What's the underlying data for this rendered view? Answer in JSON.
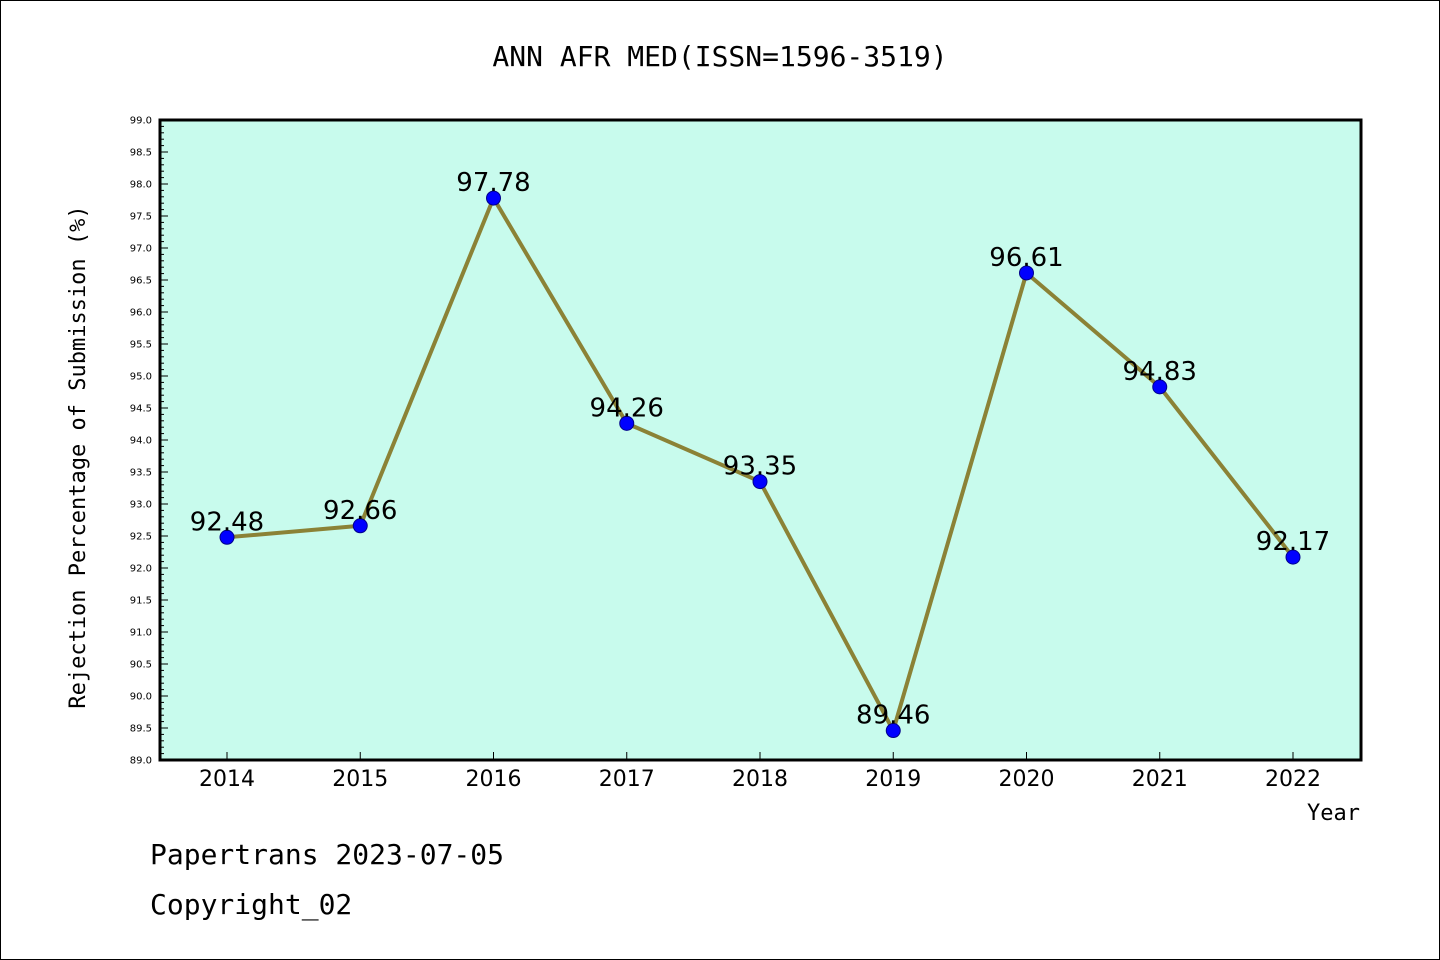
{
  "chart_data": {
    "type": "line",
    "title": "ANN AFR MED(ISSN=1596-3519)",
    "xlabel": "Year",
    "ylabel": "Rejection Percentage of Submission (%)",
    "ylim": [
      89.0,
      99.0
    ],
    "ytick_step": 0.5,
    "grid": false,
    "legend": "none",
    "categories": [
      "2014",
      "2015",
      "2016",
      "2017",
      "2018",
      "2019",
      "2020",
      "2021",
      "2022"
    ],
    "series": [
      {
        "values": [
          92.48,
          92.66,
          97.78,
          94.26,
          93.35,
          89.46,
          96.61,
          94.83,
          92.17
        ],
        "labels": [
          "92.48",
          "92.66",
          "97.78",
          "94.26",
          "93.35",
          "89.46",
          "96.61",
          "94.83",
          "92.17"
        ]
      }
    ],
    "colors": {
      "plot_background": "#c8fbed",
      "line": "#8b8236",
      "marker": "#0000ff"
    }
  },
  "footer": {
    "line1": "Papertrans 2023-07-05",
    "line2": "Copyright_02"
  }
}
